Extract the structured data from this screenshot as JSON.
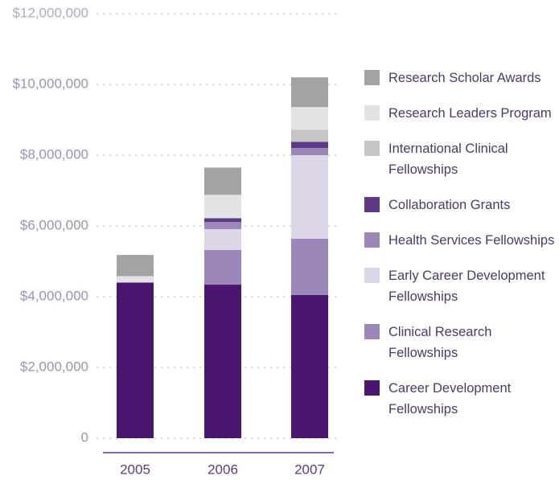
{
  "chart_data": {
    "type": "stacked-bar",
    "categories": [
      "2005",
      "2006",
      "2007"
    ],
    "series": [
      {
        "name": "Career Development Fellowships",
        "color": "#4a1670",
        "values": [
          4400000,
          4340000,
          4050000
        ]
      },
      {
        "name": "Clinical Research Fellowships",
        "color": "#9b88b8",
        "values": [
          0,
          980000,
          1590000
        ]
      },
      {
        "name": "Early Career Development Fellowships",
        "color": "#dcd6e8",
        "values": [
          0,
          590000,
          2360000
        ]
      },
      {
        "name": "Health Services Fellowships",
        "color": "#9b88b8",
        "values": [
          0,
          200000,
          200000
        ]
      },
      {
        "name": "Collaboration Grants",
        "color": "#5e3a86",
        "values": [
          0,
          110000,
          180000
        ]
      },
      {
        "name": "International Clinical Fellowships",
        "color": "#c6c6c6",
        "values": [
          0,
          0,
          340000
        ]
      },
      {
        "name": "Research Leaders Program",
        "color": "#e3e3e3",
        "values": [
          180000,
          660000,
          640000
        ]
      },
      {
        "name": "Research Scholar Awards",
        "color": "#a3a3a3",
        "values": [
          600000,
          770000,
          840000
        ]
      }
    ],
    "ylim": [
      0,
      12000000
    ],
    "yticks": [
      0,
      {
        "value": 2000000,
        "label": "$2,000,000"
      },
      {
        "value": 4000000,
        "label": "$4,000,000"
      },
      {
        "value": 6000000,
        "label": "$6,000,000"
      },
      {
        "value": 8000000,
        "label": "$8,000,000"
      },
      {
        "value": 10000000,
        "label": "$10,000,000"
      },
      {
        "value": 12000000,
        "label": "$12,000,000"
      }
    ],
    "grid": true
  }
}
